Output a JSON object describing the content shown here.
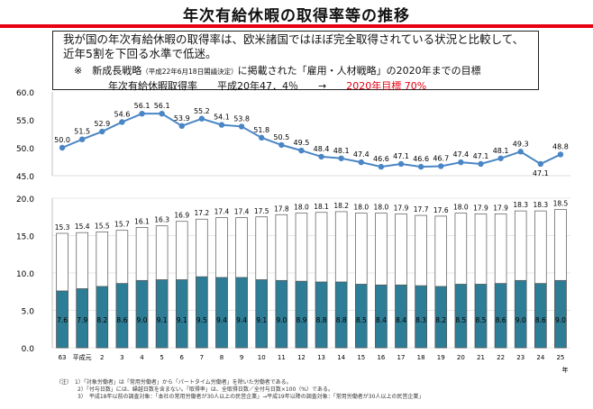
{
  "title": "年次有給休暇の取得率等の推移",
  "callout": {
    "text": "我が国の年次有給休暇の取得率は、欧米諸国ではほぼ完全取得されている状況と比較して、近年5割を下回る水準で低迷。",
    "note_mark": "※",
    "note_main1": "新成長戦略",
    "note_small": "（平成22年6月18日閣議決定）",
    "note_main2": "に掲載された「雇用・人材戦略」の2020年までの目標",
    "rate_label": "年次有給休暇取得率",
    "rate_value": "平成20年47．4％",
    "arrow": "→",
    "target": "2020年目標 70%"
  },
  "chart_data": [
    {
      "type": "line",
      "categories": [
        "63",
        "平成元",
        "2",
        "3",
        "4",
        "5",
        "6",
        "7",
        "8",
        "9",
        "10",
        "11",
        "12",
        "13",
        "14",
        "15",
        "16",
        "17",
        "18",
        "19",
        "20",
        "21",
        "22",
        "23",
        "24",
        "25"
      ],
      "values": [
        50.0,
        51.5,
        52.9,
        54.6,
        56.1,
        56.1,
        53.9,
        55.2,
        54.1,
        53.8,
        51.8,
        50.5,
        49.5,
        48.4,
        48.1,
        47.4,
        46.6,
        47.1,
        46.6,
        46.7,
        47.4,
        47.1,
        48.1,
        49.3,
        47.1,
        48.8
      ],
      "ylim": [
        45.0,
        60.0
      ],
      "yticks": [
        "45.0",
        "50.0",
        "55.0",
        "60.0"
      ],
      "color": "#4a86c5"
    },
    {
      "type": "bar",
      "categories": [
        "63",
        "平成元",
        "2",
        "3",
        "4",
        "5",
        "6",
        "7",
        "8",
        "9",
        "10",
        "11",
        "12",
        "13",
        "14",
        "15",
        "16",
        "17",
        "18",
        "19",
        "20",
        "21",
        "22",
        "23",
        "24",
        "25"
      ],
      "series": [
        {
          "values": [
            7.6,
            7.9,
            8.2,
            8.6,
            9.0,
            9.1,
            9.1,
            9.5,
            9.4,
            9.4,
            9.1,
            9.0,
            8.9,
            8.8,
            8.8,
            8.5,
            8.4,
            8.4,
            8.3,
            8.2,
            8.5,
            8.5,
            8.6,
            9.0,
            8.6,
            9.0
          ],
          "color": "#2e7d96"
        },
        {
          "values": [
            15.3,
            15.4,
            15.5,
            15.7,
            16.1,
            16.3,
            16.9,
            17.2,
            17.4,
            17.4,
            17.5,
            17.8,
            18.0,
            18.1,
            18.2,
            18.0,
            18.0,
            17.9,
            17.7,
            17.6,
            18.0,
            17.9,
            17.9,
            18.3,
            18.3,
            18.5
          ],
          "color": "#ffffff"
        }
      ],
      "ylim": [
        0.0,
        20.0
      ],
      "yticks": [
        "0.0",
        "5.0",
        "10.0",
        "15.0",
        "20.0"
      ],
      "x_unit": "年"
    }
  ],
  "footnotes": [
    "（注）　1）「対象労働者」は「常用労働者」から「パートタイム労働者」を除いた労働者である。",
    "　　　　2）「付与日数」には、繰越日数を含まない。「取得率」は、全取得日数／全付与日数×100（%）である。",
    "　　　　3）　平成18年以前の調査対象：「本社の常用労働者が30人以上の民営企業」→平成19年以降の調査対象：「常用労働者が30人以上の民営企業」"
  ]
}
